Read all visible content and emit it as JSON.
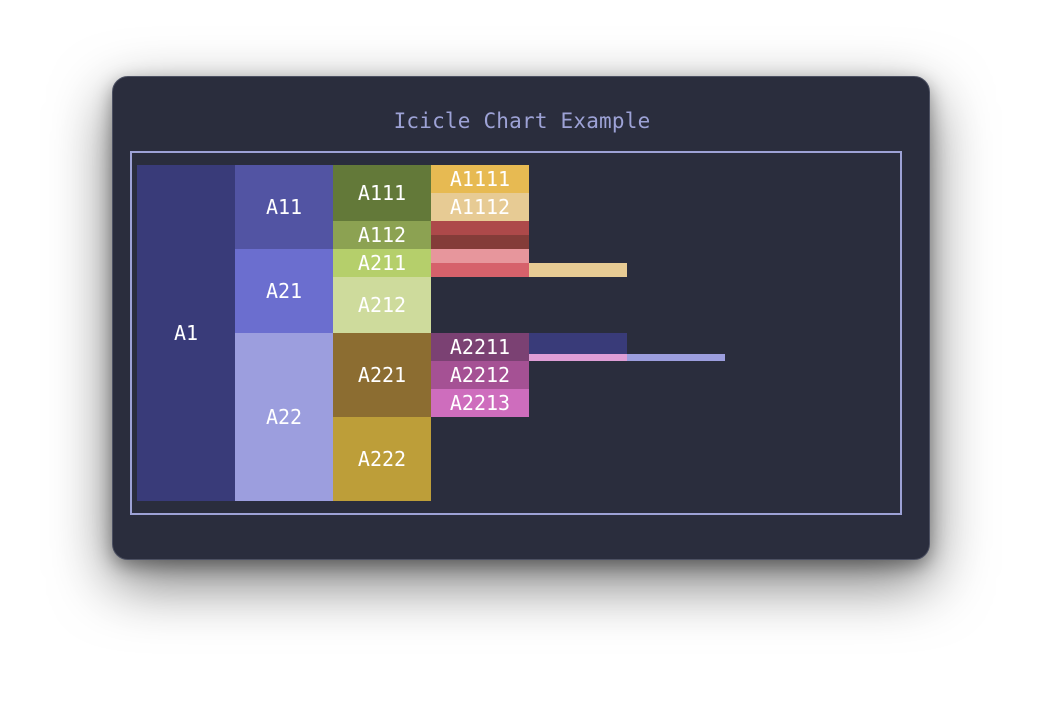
{
  "window": {
    "background": "#2a2d3d",
    "border_color": "#9da2d6"
  },
  "chart_data": {
    "type": "icicle",
    "title": "Icicle Chart Example",
    "orientation": "horizontal",
    "nodes": [
      {
        "id": "A1",
        "label": "A1",
        "depth": 0,
        "start": 0,
        "size": 12,
        "color": "#393b79"
      },
      {
        "id": "A11",
        "label": "A11",
        "depth": 1,
        "start": 0,
        "size": 3,
        "color": "#5254a3"
      },
      {
        "id": "A21",
        "label": "A21",
        "depth": 1,
        "start": 3,
        "size": 3,
        "color": "#6b6ecf"
      },
      {
        "id": "A22",
        "label": "A22",
        "depth": 1,
        "start": 6,
        "size": 6,
        "color": "#9c9ede"
      },
      {
        "id": "A111",
        "label": "A111",
        "depth": 2,
        "start": 0,
        "size": 2,
        "color": "#637939"
      },
      {
        "id": "A112",
        "label": "A112",
        "depth": 2,
        "start": 2,
        "size": 1,
        "color": "#8ca252"
      },
      {
        "id": "A211",
        "label": "A211",
        "depth": 2,
        "start": 3,
        "size": 1,
        "color": "#b5cf6b"
      },
      {
        "id": "A212",
        "label": "A212",
        "depth": 2,
        "start": 4,
        "size": 2,
        "color": "#cedb9c"
      },
      {
        "id": "A221",
        "label": "A221",
        "depth": 2,
        "start": 6,
        "size": 3,
        "color": "#8c6d31"
      },
      {
        "id": "A222",
        "label": "A222",
        "depth": 2,
        "start": 9,
        "size": 3,
        "color": "#bd9e39"
      },
      {
        "id": "A1111",
        "label": "A1111",
        "depth": 3,
        "start": 0,
        "size": 1,
        "color": "#e7ba52"
      },
      {
        "id": "A1112",
        "label": "A1112",
        "depth": 3,
        "start": 1,
        "size": 1,
        "color": "#e7cb94"
      },
      {
        "id": "A1121",
        "label": "",
        "depth": 3,
        "start": 2,
        "size": 0.5,
        "color": "#ad494a"
      },
      {
        "id": "A1122",
        "label": "",
        "depth": 3,
        "start": 2.5,
        "size": 0.5,
        "color": "#843c39"
      },
      {
        "id": "A2111",
        "label": "",
        "depth": 3,
        "start": 3,
        "size": 0.5,
        "color": "#e7969c"
      },
      {
        "id": "A2112",
        "label": "",
        "depth": 3,
        "start": 3.5,
        "size": 0.5,
        "color": "#d6616b"
      },
      {
        "id": "A21121",
        "label": "",
        "depth": 4,
        "start": 3.5,
        "size": 0.5,
        "color": "#e7cb94"
      },
      {
        "id": "A2211",
        "label": "A2211",
        "depth": 3,
        "start": 6,
        "size": 1,
        "color": "#7b4173"
      },
      {
        "id": "A2212",
        "label": "A2212",
        "depth": 3,
        "start": 7,
        "size": 1,
        "color": "#a55194"
      },
      {
        "id": "A2213",
        "label": "A2213",
        "depth": 3,
        "start": 8,
        "size": 1,
        "color": "#ce6dbd"
      },
      {
        "id": "A22111",
        "label": "",
        "depth": 4,
        "start": 6,
        "size": 0.75,
        "color": "#393b79"
      },
      {
        "id": "A22112",
        "label": "",
        "depth": 4,
        "start": 6.75,
        "size": 0.25,
        "color": "#de9ed6"
      },
      {
        "id": "A221121",
        "label": "",
        "depth": 5,
        "start": 6.75,
        "size": 0.25,
        "color": "#9c9ede"
      }
    ],
    "total": 12,
    "grid": false,
    "legend": "none"
  }
}
